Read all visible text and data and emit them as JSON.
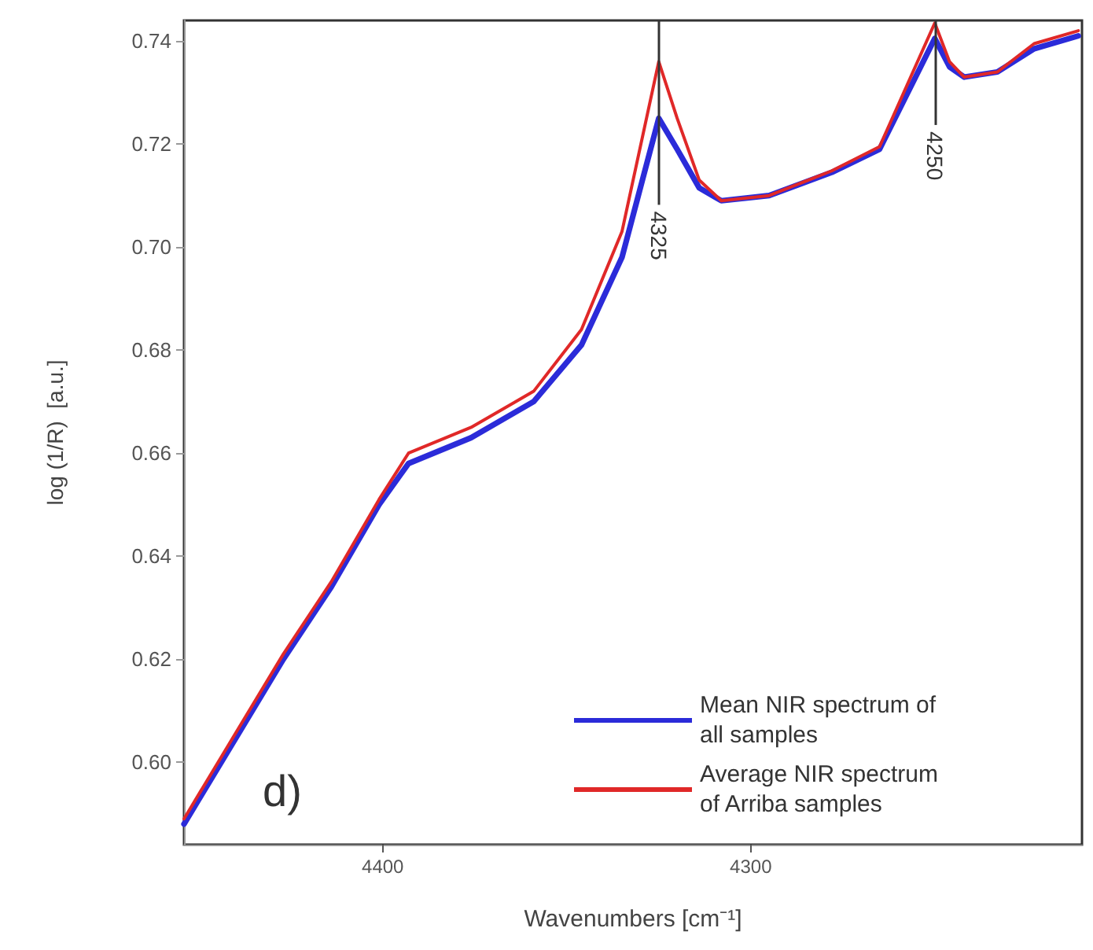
{
  "chart_data": {
    "type": "line",
    "xlabel": "Wavenumbers [cm⁻¹]",
    "ylabel": "log (1/R)  [a.u.]",
    "xlim": [
      4454,
      4210
    ],
    "xticks": [
      4400,
      4300
    ],
    "ylim": [
      0.584,
      0.744
    ],
    "yticks": [
      {
        "value": 0.6,
        "label": "0.60"
      },
      {
        "value": 0.62,
        "label": "0.62"
      },
      {
        "value": 0.64,
        "label": "0.64"
      },
      {
        "value": 0.66,
        "label": "0.66"
      },
      {
        "value": 0.68,
        "label": "0.68"
      },
      {
        "value": 0.7,
        "label": "0.70"
      },
      {
        "value": 0.72,
        "label": "0.72"
      },
      {
        "value": 0.74,
        "label": "0.74"
      }
    ],
    "x": [
      4454,
      4440,
      4427,
      4414,
      4401,
      4393,
      4376,
      4359,
      4346,
      4335,
      4325,
      4320,
      4314,
      4308,
      4295,
      4278,
      4265,
      4250,
      4246,
      4242,
      4233,
      4223,
      4211
    ],
    "series": [
      {
        "name": "Mean NIR spectrum of all samples",
        "color": "#2b2bd9",
        "values": [
          0.588,
          0.6046,
          0.62,
          0.634,
          0.65,
          0.658,
          0.663,
          0.67,
          0.681,
          0.698,
          0.725,
          0.719,
          0.7115,
          0.709,
          0.71,
          0.7145,
          0.719,
          0.7405,
          0.735,
          0.733,
          0.734,
          0.7385,
          0.741
        ]
      },
      {
        "name": "Average NIR spectrum of Arriba samples",
        "color": "#e02828",
        "values": [
          0.589,
          0.6056,
          0.621,
          0.635,
          0.651,
          0.66,
          0.665,
          0.672,
          0.684,
          0.703,
          0.736,
          0.725,
          0.713,
          0.709,
          0.71,
          0.7148,
          0.7195,
          0.7435,
          0.736,
          0.733,
          0.734,
          0.7395,
          0.742
        ]
      }
    ],
    "annotations": [
      "d)"
    ],
    "ref_lines": [
      {
        "axis": "x",
        "value": 4325,
        "label": "4325",
        "color": "#333333"
      },
      {
        "axis": "x",
        "value": 4250,
        "label": "4250",
        "color": "#333333"
      }
    ],
    "legend": "bottom right",
    "grid": false
  }
}
